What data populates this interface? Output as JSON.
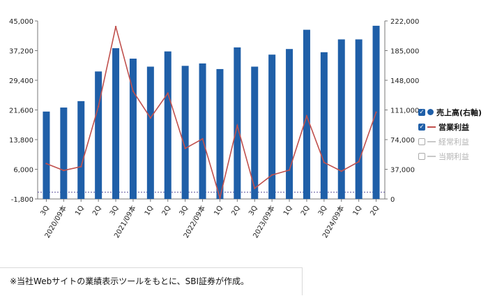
{
  "legend": {
    "items": [
      {
        "label": "売上高(右軸)",
        "state": "on",
        "symbol": "dot",
        "color": "#1f5fa8"
      },
      {
        "label": "営業利益",
        "state": "on",
        "symbol": "line",
        "color": "#c0504d"
      },
      {
        "label": "経常利益",
        "state": "off",
        "symbol": "line",
        "color": "#c8c8c8"
      },
      {
        "label": "当期利益",
        "state": "off",
        "symbol": "line",
        "color": "#c8c8c8"
      }
    ]
  },
  "footnote": "※当社Webサイトの業績表示ツールをもとに、SBI証券が作成。",
  "chart_data": {
    "type": "bar",
    "categories": [
      "3Q",
      "2020/09本",
      "1Q",
      "2Q",
      "3Q",
      "2021/09本",
      "1Q",
      "2Q",
      "3Q",
      "2022/09本",
      "1Q",
      "2Q",
      "3Q",
      "2023/09本",
      "1Q",
      "2Q",
      "3Q",
      "2024/09本",
      "1Q",
      "2Q"
    ],
    "series": [
      {
        "name": "売上高(右軸)",
        "type": "bar",
        "axis": "right",
        "color": "#1f5fa8",
        "values": [
          109000,
          114000,
          122000,
          159000,
          188000,
          175000,
          165000,
          184000,
          166000,
          169000,
          162000,
          189000,
          165000,
          180000,
          187000,
          211000,
          183000,
          199000,
          199000,
          216000
        ]
      },
      {
        "name": "営業利益",
        "type": "line",
        "axis": "left",
        "color": "#c0504d",
        "values": [
          7500,
          5700,
          6700,
          22500,
          43500,
          26500,
          19500,
          26000,
          11500,
          14000,
          -1500,
          17500,
          1000,
          4500,
          5800,
          20000,
          7800,
          5500,
          8000,
          21000
        ]
      }
    ],
    "yleft": {
      "ticks": [
        "45,000",
        "37,200",
        "29,400",
        "21,600",
        "13,800",
        "6,000",
        "-1,800"
      ],
      "min": -1800,
      "max": 45000
    },
    "yright": {
      "ticks": [
        "222,000",
        "185,000",
        "148,000",
        "111,000",
        "74,000",
        "37,000",
        "0"
      ],
      "min": 0,
      "max": 222000
    },
    "zero_line": 0,
    "grid": false
  }
}
